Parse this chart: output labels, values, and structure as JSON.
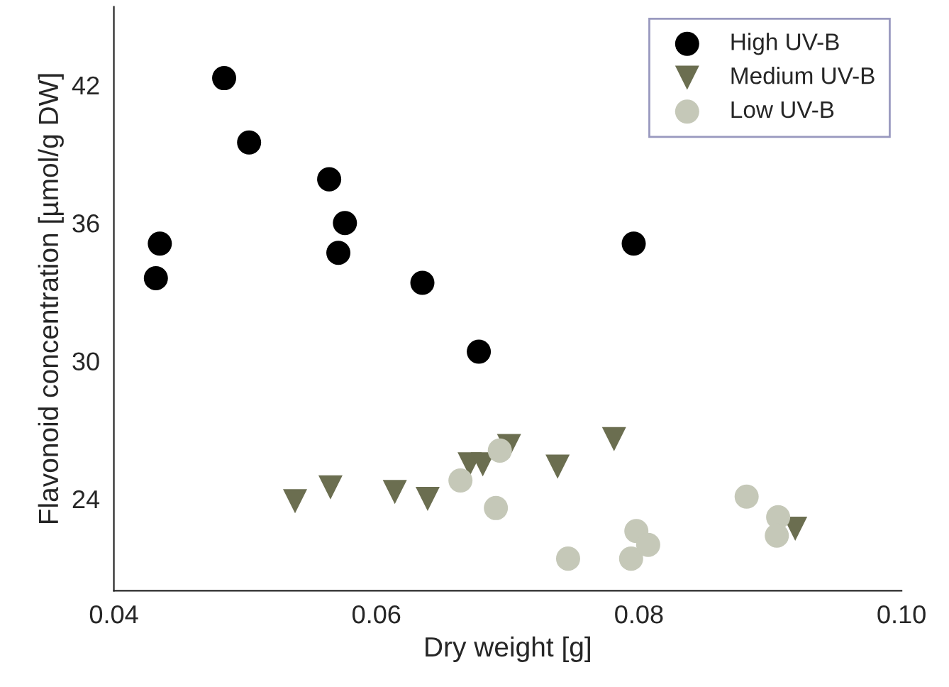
{
  "chart_data": {
    "type": "scatter",
    "xlabel": "Dry weight [g]",
    "ylabel": "Flavonoid concentration [µmol/g DW]",
    "xlim": [
      0.04,
      0.1
    ],
    "xticks": [
      0.04,
      0.06,
      0.08,
      {
        "value": 0.1,
        "label": "0.10"
      }
    ],
    "ylim": [
      20,
      45.4
    ],
    "yticks": [
      24,
      30,
      36,
      42
    ],
    "legend": "top right",
    "grid": false,
    "series": [
      {
        "name": "High UV-B",
        "color": "#000000",
        "marker": "circle",
        "x": [
          0.0432,
          0.0435,
          0.0484,
          0.0503,
          0.0564,
          0.0576,
          0.0571,
          0.0635,
          0.0678,
          0.0796
        ],
        "values": [
          33.6,
          35.1,
          42.3,
          39.5,
          37.9,
          36.0,
          34.7,
          33.4,
          30.4,
          35.1
        ]
      },
      {
        "name": "Medium UV-B",
        "color": "#6b6e50",
        "marker": "triangle",
        "x": [
          0.0538,
          0.0565,
          0.0614,
          0.0639,
          0.0671,
          0.0681,
          0.0701,
          0.0738,
          0.0781,
          0.0919
        ],
        "values": [
          23.9,
          24.5,
          24.3,
          24.0,
          25.5,
          25.5,
          26.3,
          25.4,
          26.6,
          22.7
        ]
      },
      {
        "name": "Low UV-B",
        "color": "#c5c8b8",
        "marker": "circle",
        "x": [
          0.0664,
          0.0694,
          0.0691,
          0.0746,
          0.0794,
          0.0798,
          0.0807,
          0.0882,
          0.0906,
          0.0905
        ],
        "values": [
          24.8,
          26.1,
          23.6,
          21.4,
          21.4,
          22.6,
          22.0,
          24.1,
          23.2,
          22.4
        ]
      }
    ]
  }
}
